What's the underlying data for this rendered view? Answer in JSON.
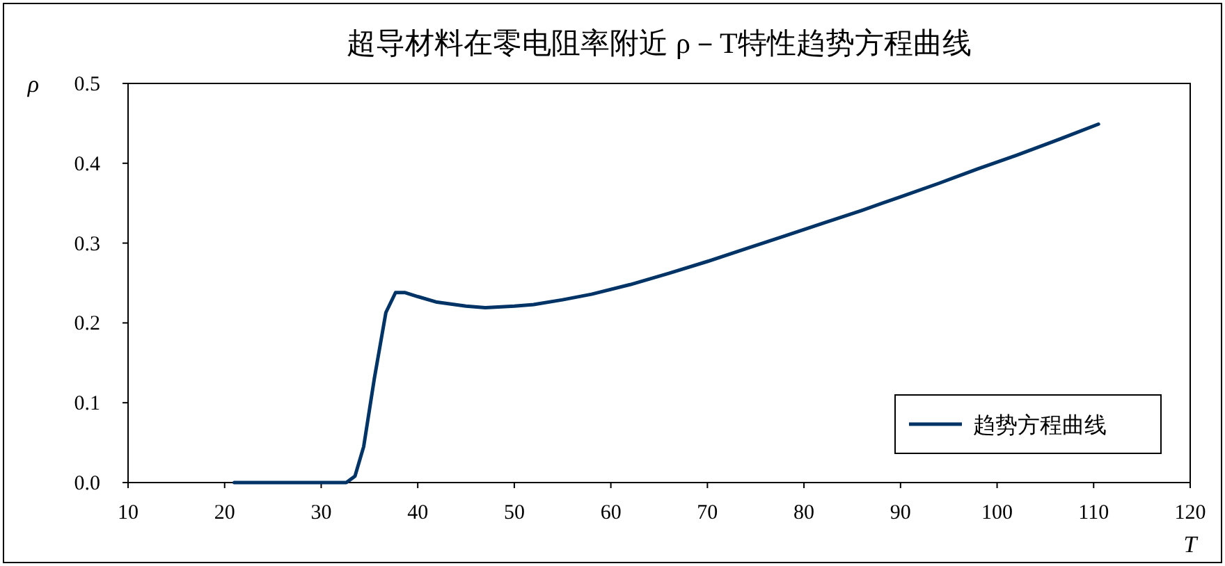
{
  "chart_data": {
    "type": "line",
    "title": "超导材料在零电阻率附近 ρ－T特性趋势方程曲线",
    "xlabel": "T",
    "ylabel": "ρ",
    "x": [
      21,
      25,
      30,
      32.6,
      33.5,
      34.4,
      35.5,
      36.7,
      37.7,
      38.7,
      40,
      42,
      45,
      47,
      50,
      52,
      55,
      58,
      62,
      66,
      70,
      74,
      78,
      82,
      86,
      90,
      94,
      98,
      102,
      106,
      110.5
    ],
    "series": [
      {
        "name": "趋势方程曲线",
        "color": "#003366",
        "values": [
          0,
          0,
          0,
          0,
          0.008,
          0.045,
          0.13,
          0.213,
          0.238,
          0.238,
          0.233,
          0.226,
          0.221,
          0.219,
          0.221,
          0.223,
          0.229,
          0.236,
          0.248,
          0.262,
          0.277,
          0.293,
          0.309,
          0.325,
          0.341,
          0.358,
          0.375,
          0.393,
          0.41,
          0.428,
          0.449
        ]
      }
    ],
    "xlim": [
      10,
      120
    ],
    "ylim": [
      0,
      0.5
    ],
    "xticks": [
      10,
      20,
      30,
      40,
      50,
      60,
      70,
      80,
      90,
      100,
      110,
      120
    ],
    "yticks": [
      {
        "value": 0,
        "label": "0.0"
      },
      0.1,
      0.2,
      0.3,
      0.4,
      0.5
    ],
    "legend": "bottom right"
  }
}
